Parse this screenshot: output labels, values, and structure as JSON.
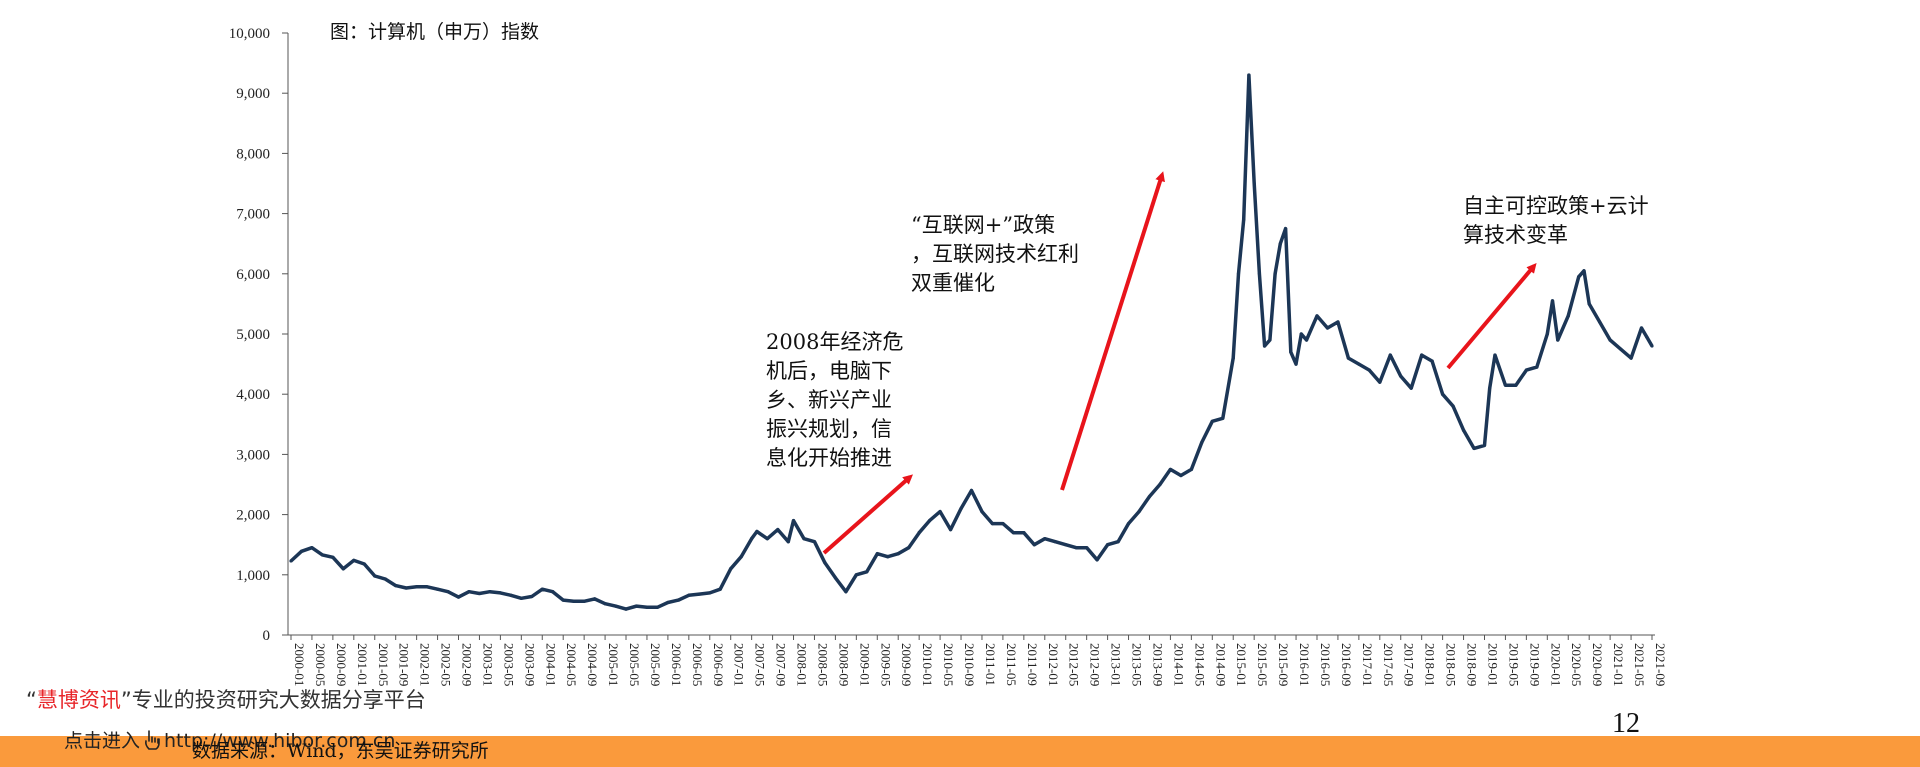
{
  "chart_data": {
    "type": "line",
    "title": "图：计算机（申万）指数",
    "xlabel": "",
    "ylabel": "",
    "ylim": [
      0,
      10000
    ],
    "yticks": [
      "0",
      "1,000",
      "2,000",
      "3,000",
      "4,000",
      "5,000",
      "6,000",
      "7,000",
      "8,000",
      "9,000",
      "10,000"
    ],
    "xticks": [
      "2000-01",
      "2000-05",
      "2000-09",
      "2001-01",
      "2001-05",
      "2001-09",
      "2002-01",
      "2002-05",
      "2002-09",
      "2003-01",
      "2003-05",
      "2003-09",
      "2004-01",
      "2004-05",
      "2004-09",
      "2005-01",
      "2005-05",
      "2005-09",
      "2006-01",
      "2006-05",
      "2006-09",
      "2007-01",
      "2007-05",
      "2007-09",
      "2008-01",
      "2008-05",
      "2008-09",
      "2009-01",
      "2009-05",
      "2009-09",
      "2010-01",
      "2010-05",
      "2010-09",
      "2011-01",
      "2011-05",
      "2011-09",
      "2012-01",
      "2012-05",
      "2012-09",
      "2013-01",
      "2013-05",
      "2013-09",
      "2014-01",
      "2014-05",
      "2014-09",
      "2015-01",
      "2015-05",
      "2015-09",
      "2016-01",
      "2016-05",
      "2016-09",
      "2017-01",
      "2017-05",
      "2017-09",
      "2018-01",
      "2018-05",
      "2018-09",
      "2019-01",
      "2019-05",
      "2019-09",
      "2020-01",
      "2020-05",
      "2020-09",
      "2021-01",
      "2021-05",
      "2021-09"
    ],
    "grid": false,
    "legend": "none",
    "line_color": "#1c3656",
    "arrow_color": "#e8141b",
    "series": [
      {
        "name": "",
        "x": [
          "2000-01",
          "2000-03",
          "2000-05",
          "2000-07",
          "2000-09",
          "2000-11",
          "2001-01",
          "2001-03",
          "2001-05",
          "2001-07",
          "2001-09",
          "2001-11",
          "2002-01",
          "2002-03",
          "2002-05",
          "2002-07",
          "2002-09",
          "2002-11",
          "2003-01",
          "2003-03",
          "2003-05",
          "2003-07",
          "2003-09",
          "2003-11",
          "2004-01",
          "2004-03",
          "2004-05",
          "2004-07",
          "2004-09",
          "2004-11",
          "2005-01",
          "2005-03",
          "2005-05",
          "2005-07",
          "2005-09",
          "2005-11",
          "2006-01",
          "2006-03",
          "2006-05",
          "2006-07",
          "2006-09",
          "2006-11",
          "2007-01",
          "2007-03",
          "2007-05",
          "2007-06",
          "2007-08",
          "2007-10",
          "2007-12",
          "2008-01",
          "2008-03",
          "2008-05",
          "2008-07",
          "2008-09",
          "2008-11",
          "2009-01",
          "2009-03",
          "2009-05",
          "2009-07",
          "2009-09",
          "2009-11",
          "2010-01",
          "2010-03",
          "2010-05",
          "2010-07",
          "2010-09",
          "2010-11",
          "2011-01",
          "2011-03",
          "2011-05",
          "2011-07",
          "2011-09",
          "2011-11",
          "2012-01",
          "2012-03",
          "2012-05",
          "2012-07",
          "2012-09",
          "2012-11",
          "2013-01",
          "2013-03",
          "2013-05",
          "2013-07",
          "2013-09",
          "2013-11",
          "2014-01",
          "2014-03",
          "2014-05",
          "2014-07",
          "2014-09",
          "2014-11",
          "2015-01",
          "2015-02",
          "2015-03",
          "2015-04",
          "2015-05",
          "2015-06",
          "2015-07",
          "2015-08",
          "2015-09",
          "2015-10",
          "2015-11",
          "2015-12",
          "2016-01",
          "2016-02",
          "2016-03",
          "2016-05",
          "2016-07",
          "2016-09",
          "2016-11",
          "2017-01",
          "2017-03",
          "2017-05",
          "2017-07",
          "2017-09",
          "2017-11",
          "2018-01",
          "2018-03",
          "2018-05",
          "2018-07",
          "2018-09",
          "2018-11",
          "2019-01",
          "2019-02",
          "2019-03",
          "2019-05",
          "2019-07",
          "2019-09",
          "2019-11",
          "2020-01",
          "2020-02",
          "2020-03",
          "2020-05",
          "2020-07",
          "2020-08",
          "2020-09",
          "2020-11",
          "2021-01",
          "2021-03",
          "2021-05",
          "2021-07",
          "2021-08",
          "2021-09"
        ],
        "values": [
          1230,
          1390,
          1450,
          1330,
          1290,
          1100,
          1240,
          1180,
          980,
          930,
          820,
          780,
          800,
          800,
          760,
          720,
          630,
          720,
          690,
          720,
          700,
          660,
          610,
          640,
          760,
          720,
          580,
          560,
          560,
          600,
          520,
          480,
          430,
          480,
          460,
          460,
          540,
          580,
          660,
          680,
          700,
          760,
          1100,
          1300,
          1600,
          1720,
          1600,
          1750,
          1550,
          1900,
          1600,
          1550,
          1200,
          950,
          720,
          1000,
          1050,
          1350,
          1300,
          1350,
          1450,
          1700,
          1900,
          2050,
          1750,
          2100,
          2400,
          2050,
          1850,
          1850,
          1700,
          1700,
          1500,
          1600,
          1550,
          1500,
          1450,
          1450,
          1250,
          1500,
          1550,
          1850,
          2050,
          2300,
          2500,
          2750,
          2650,
          2750,
          3200,
          3550,
          3600,
          4600,
          6000,
          6900,
          9300,
          7500,
          6000,
          4800,
          4900,
          6000,
          6500,
          6750,
          4700,
          4500,
          5000,
          4900,
          5300,
          5100,
          5200,
          4600,
          4500,
          4400,
          4200,
          4650,
          4300,
          4100,
          4650,
          4550,
          4000,
          3800,
          3400,
          3100,
          3150,
          4100,
          4650,
          4150,
          4150,
          4400,
          4450,
          5000,
          5550,
          4900,
          5300,
          5950,
          6050,
          5500,
          5200,
          4900,
          4750,
          4600,
          5100,
          4950,
          4800
        ]
      }
    ],
    "annotations": [
      {
        "lines": [
          "2008年经济危",
          "机后，电脑下",
          "乡、新兴产业",
          "振兴规划，信",
          "息化开始推进"
        ]
      },
      {
        "lines": [
          "“互联网+”政策",
          "，互联网技术红利",
          "双重催化"
        ]
      },
      {
        "lines": [
          "自主可控政策+云计",
          "算技术变革"
        ]
      }
    ]
  },
  "footer": {
    "watermark_quote_open": "“",
    "watermark_brand": "慧博资讯",
    "watermark_rest": "”专业的投资研究大数据分享平台",
    "enter_label": "点击进入",
    "hand_icon": "hand-pointer-icon",
    "url": "http://www.hibor.com.cn",
    "source": "数据来源：Wind，东吴证券研究所",
    "page_number": "12"
  }
}
